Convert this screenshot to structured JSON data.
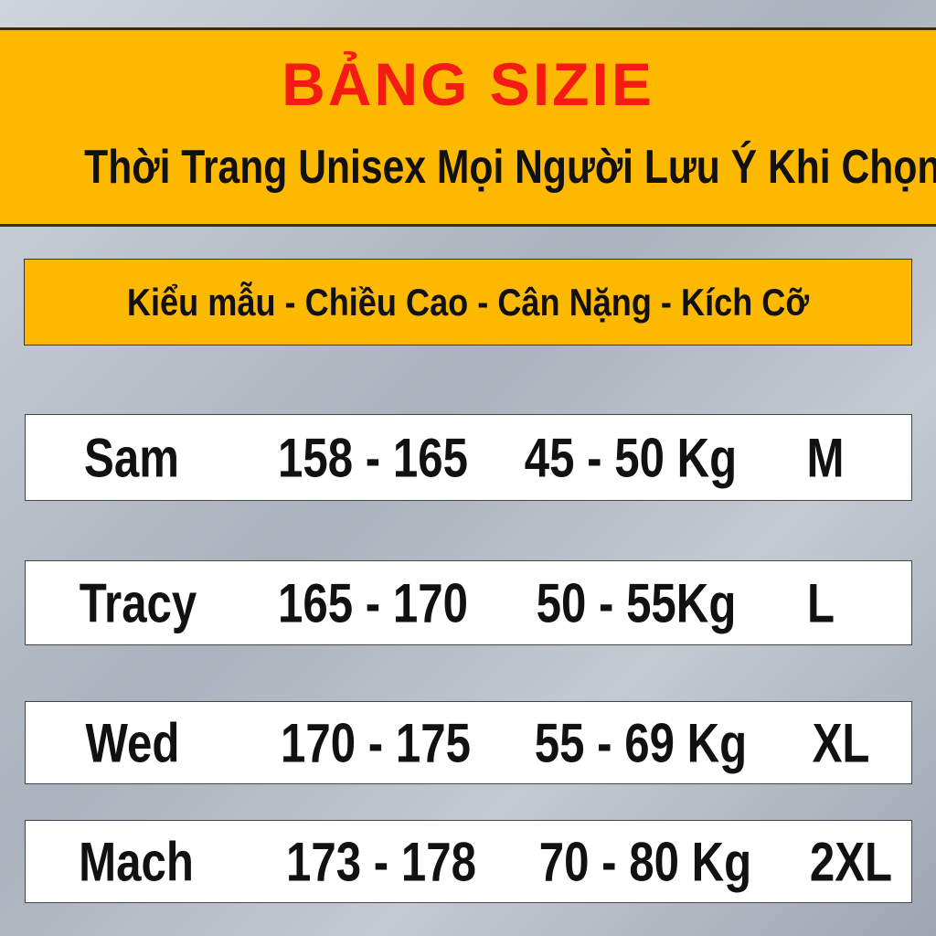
{
  "banner": {
    "title": "BẢNG SIZIE",
    "subtitle": "Thời Trang Unisex Mọi Người Lưu Ý Khi Chọn"
  },
  "header": {
    "label": "Kiểu mẫu - Chiều Cao - Cân Nặng - Kích Cỡ"
  },
  "colors": {
    "banner": "#fdb900",
    "title": "#f31b12",
    "text": "#111111",
    "row_bg": "#ffffff"
  },
  "rows": [
    {
      "model": "Sam",
      "height": "158 - 165",
      "weight": "45 - 50 Kg",
      "size": "M"
    },
    {
      "model": "Tracy",
      "height": "165 - 170",
      "weight": "50 - 55Kg",
      "size": "L"
    },
    {
      "model": "Wed",
      "height": "170 - 175",
      "weight": "55 - 69 Kg",
      "size": "XL"
    },
    {
      "model": "Mach",
      "height": "173 - 178",
      "weight": "70 - 80 Kg",
      "size": "2XL"
    }
  ]
}
